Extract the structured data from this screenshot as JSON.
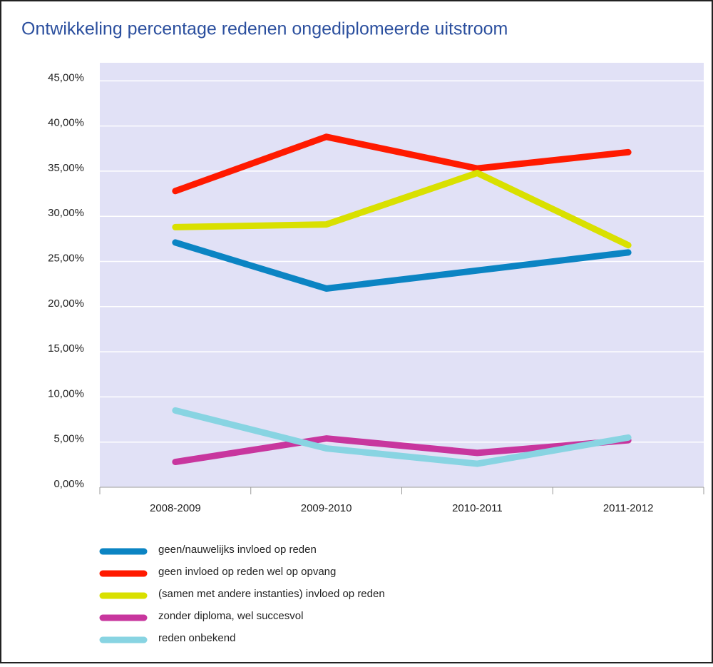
{
  "chart_data": {
    "type": "line",
    "title": "Ontwikkeling percentage redenen ongediplomeerde uitstroom",
    "categories": [
      "2008-2009",
      "2009-2010",
      "2010-2011",
      "2011-2012"
    ],
    "series": [
      {
        "name": "geen/nauwelijks invloed op reden",
        "color": "#0b84c3",
        "values": [
          27.1,
          22.0,
          24.0,
          26.0
        ]
      },
      {
        "name": "geen invloed op reden wel op opvang",
        "color": "#ff1a00",
        "values": [
          32.8,
          38.8,
          35.3,
          37.1
        ]
      },
      {
        "name": "(samen met andere instanties) invloed op reden",
        "color": "#d9e000",
        "values": [
          28.8,
          29.1,
          34.8,
          26.8
        ]
      },
      {
        "name": "zonder diploma, wel succesvol",
        "color": "#c8369e",
        "values": [
          2.8,
          5.4,
          3.8,
          5.2
        ]
      },
      {
        "name": "reden onbekend",
        "color": "#88d4e2",
        "values": [
          8.5,
          4.3,
          2.6,
          5.5
        ]
      }
    ],
    "ylim": [
      0,
      47
    ],
    "yticks": [
      {
        "value": 0,
        "label": "0,00%"
      },
      {
        "value": 5,
        "label": "5,00%"
      },
      {
        "value": 10,
        "label": "10,00%"
      },
      {
        "value": 15,
        "label": "15,00%"
      },
      {
        "value": 20,
        "label": "20,00%"
      },
      {
        "value": 25,
        "label": "25,00%"
      },
      {
        "value": 30,
        "label": "30,00%"
      },
      {
        "value": 35,
        "label": "35,00%"
      },
      {
        "value": 40,
        "label": "40,00%"
      },
      {
        "value": 45,
        "label": "45,00%"
      }
    ],
    "grid": true
  }
}
